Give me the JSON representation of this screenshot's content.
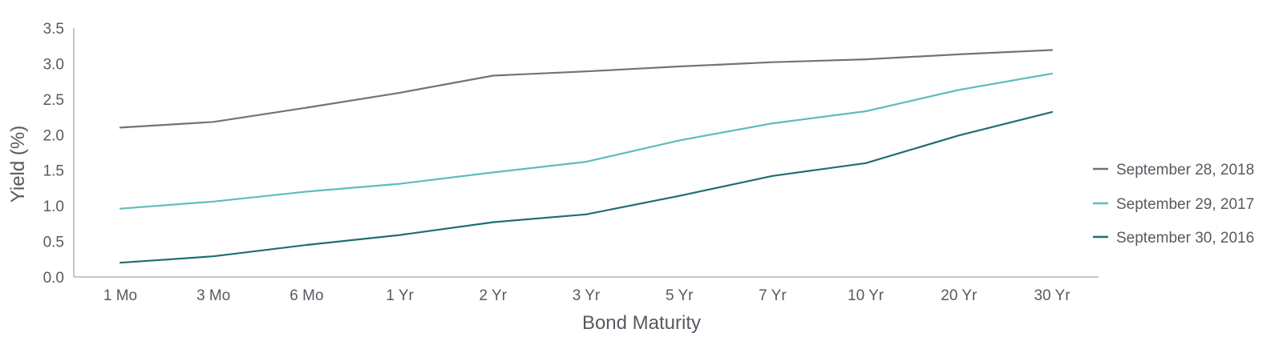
{
  "chart_data": {
    "type": "line",
    "xlabel": "Bond Maturity",
    "ylabel": "Yield (%)",
    "ylim": [
      0,
      3.5
    ],
    "yticks": [
      "0.0",
      "0.5",
      "1.0",
      "1.5",
      "2.0",
      "2.5",
      "3.0",
      "3.5"
    ],
    "categories": [
      "1 Mo",
      "3 Mo",
      "6 Mo",
      "1 Yr",
      "2 Yr",
      "3 Yr",
      "5 Yr",
      "7 Yr",
      "10 Yr",
      "20 Yr",
      "30 Yr"
    ],
    "grid": false,
    "legend_position": "right",
    "series": [
      {
        "name": "September 28, 2018",
        "color": "#6e747b",
        "values": [
          2.1,
          2.18,
          2.38,
          2.59,
          2.83,
          2.89,
          2.96,
          3.02,
          3.06,
          3.13,
          3.19
        ]
      },
      {
        "name": "September 29, 2017",
        "color": "#5fbcbc",
        "values": [
          0.96,
          1.06,
          1.2,
          1.31,
          1.47,
          1.62,
          1.92,
          2.16,
          2.33,
          2.63,
          2.86
        ]
      },
      {
        "name": "September 30, 2016",
        "color": "#1f6e72",
        "values": [
          0.2,
          0.29,
          0.45,
          0.59,
          0.77,
          0.88,
          1.14,
          1.42,
          1.6,
          1.99,
          2.32
        ]
      }
    ]
  }
}
